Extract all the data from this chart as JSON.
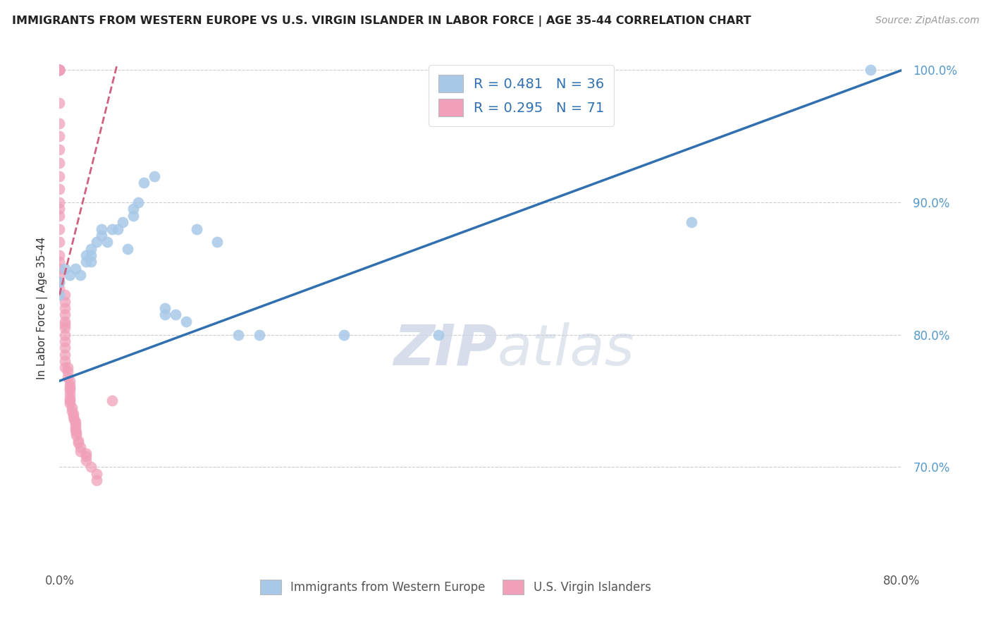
{
  "title": "IMMIGRANTS FROM WESTERN EUROPE VS U.S. VIRGIN ISLANDER IN LABOR FORCE | AGE 35-44 CORRELATION CHART",
  "source": "Source: ZipAtlas.com",
  "ylabel": "In Labor Force | Age 35-44",
  "xlim": [
    0.0,
    0.8
  ],
  "ylim": [
    0.625,
    1.015
  ],
  "xticks": [
    0.0,
    0.8
  ],
  "xticklabels": [
    "0.0%",
    "80.0%"
  ],
  "ytick_vals": [
    0.7,
    0.8,
    0.9,
    1.0
  ],
  "yticklabels": [
    "70.0%",
    "80.0%",
    "90.0%",
    "100.0%"
  ],
  "legend_blue_label": "Immigrants from Western Europe",
  "legend_pink_label": "U.S. Virgin Islanders",
  "r_blue": 0.481,
  "n_blue": 36,
  "r_pink": 0.295,
  "n_pink": 71,
  "blue_color": "#a8c8e8",
  "pink_color": "#f0a0b8",
  "trend_blue_color": "#3070b0",
  "trend_pink_color": "#d06080",
  "background_color": "#ffffff",
  "watermark_zip": "ZIP",
  "watermark_atlas": "atlas",
  "blue_trend_x0": 0.0,
  "blue_trend_y0": 0.765,
  "blue_trend_x1": 0.8,
  "blue_trend_y1": 1.0,
  "pink_trend_x0": 0.0,
  "pink_trend_y0": 0.83,
  "pink_trend_x1": 0.055,
  "pink_trend_y1": 1.005,
  "blue_points_x": [
    0.0,
    0.0,
    0.005,
    0.01,
    0.015,
    0.02,
    0.025,
    0.025,
    0.03,
    0.03,
    0.03,
    0.035,
    0.04,
    0.04,
    0.045,
    0.05,
    0.055,
    0.06,
    0.065,
    0.07,
    0.07,
    0.075,
    0.08,
    0.09,
    0.1,
    0.1,
    0.11,
    0.12,
    0.13,
    0.15,
    0.17,
    0.19,
    0.27,
    0.36,
    0.6,
    0.77
  ],
  "blue_points_y": [
    0.84,
    0.83,
    0.85,
    0.845,
    0.85,
    0.845,
    0.855,
    0.86,
    0.86,
    0.855,
    0.865,
    0.87,
    0.875,
    0.88,
    0.87,
    0.88,
    0.88,
    0.885,
    0.865,
    0.89,
    0.895,
    0.9,
    0.915,
    0.92,
    0.815,
    0.82,
    0.815,
    0.81,
    0.88,
    0.87,
    0.8,
    0.8,
    0.8,
    0.8,
    0.885,
    1.0
  ],
  "pink_points_x": [
    0.0,
    0.0,
    0.0,
    0.0,
    0.0,
    0.0,
    0.0,
    0.0,
    0.0,
    0.0,
    0.0,
    0.0,
    0.0,
    0.0,
    0.0,
    0.0,
    0.0,
    0.0,
    0.0,
    0.0,
    0.0,
    0.0,
    0.0,
    0.0,
    0.0,
    0.005,
    0.005,
    0.005,
    0.005,
    0.005,
    0.005,
    0.005,
    0.005,
    0.005,
    0.005,
    0.005,
    0.005,
    0.005,
    0.008,
    0.008,
    0.008,
    0.01,
    0.01,
    0.01,
    0.01,
    0.01,
    0.01,
    0.01,
    0.01,
    0.012,
    0.012,
    0.013,
    0.013,
    0.014,
    0.015,
    0.015,
    0.015,
    0.015,
    0.016,
    0.016,
    0.018,
    0.018,
    0.02,
    0.02,
    0.025,
    0.025,
    0.025,
    0.03,
    0.035,
    0.035,
    0.05
  ],
  "pink_points_y": [
    1.0,
    1.0,
    1.0,
    1.0,
    1.0,
    1.0,
    1.0,
    0.975,
    0.96,
    0.95,
    0.94,
    0.93,
    0.92,
    0.91,
    0.9,
    0.895,
    0.89,
    0.88,
    0.87,
    0.86,
    0.855,
    0.85,
    0.845,
    0.84,
    0.835,
    0.83,
    0.825,
    0.82,
    0.815,
    0.81,
    0.808,
    0.805,
    0.8,
    0.795,
    0.79,
    0.785,
    0.78,
    0.775,
    0.775,
    0.772,
    0.768,
    0.765,
    0.762,
    0.76,
    0.758,
    0.755,
    0.752,
    0.75,
    0.748,
    0.745,
    0.742,
    0.74,
    0.738,
    0.736,
    0.734,
    0.732,
    0.73,
    0.728,
    0.726,
    0.724,
    0.72,
    0.718,
    0.715,
    0.712,
    0.71,
    0.708,
    0.705,
    0.7,
    0.695,
    0.69,
    0.75
  ]
}
